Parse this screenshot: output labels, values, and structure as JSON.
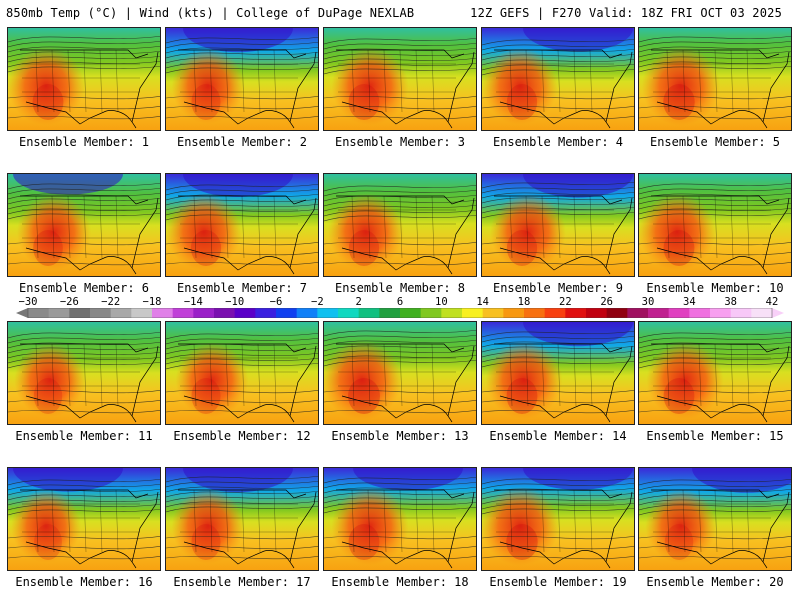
{
  "header": {
    "left_title": "850mb Temp (°C) | Wind (kts) | College of DuPage NEXLAB",
    "right_title": "12Z GEFS | F270 Valid: 18Z FRI OCT 03 2025"
  },
  "colorbar": {
    "labels": [
      "−30",
      "−26",
      "−22",
      "−18",
      "−14",
      "−10",
      "−6",
      "−2",
      "2",
      "6",
      "10",
      "14",
      "18",
      "22",
      "26",
      "30",
      "34",
      "38",
      "42"
    ],
    "colors": [
      "#8a8a8a",
      "#9a9a9a",
      "#707070",
      "#888888",
      "#a8a8a8",
      "#c8c8c8",
      "#e080e8",
      "#c040d8",
      "#9a20c8",
      "#7a10b0",
      "#5a00c8",
      "#3a20e0",
      "#1040f0",
      "#1080f8",
      "#10c0f0",
      "#10d8c0",
      "#10c080",
      "#20a040",
      "#40b020",
      "#80c820",
      "#c0e020",
      "#f8f020",
      "#f8c020",
      "#f89810",
      "#f87010",
      "#f84010",
      "#e01010",
      "#c00010",
      "#900010",
      "#a01060",
      "#c02090",
      "#e040c0",
      "#f070e0",
      "#f8a0f0",
      "#f8c8f8",
      "#f8e0f8"
    ]
  },
  "panels": [
    {
      "label": "Ensemble Member: 1",
      "blue_depth": 0.25,
      "red_west": 0.9
    },
    {
      "label": "Ensemble Member: 2",
      "blue_depth": 0.85,
      "red_west": 0.75
    },
    {
      "label": "Ensemble Member: 3",
      "blue_depth": 0.3,
      "red_west": 0.9
    },
    {
      "label": "Ensemble Member: 4",
      "blue_depth": 0.8,
      "red_west": 0.85
    },
    {
      "label": "Ensemble Member: 5",
      "blue_depth": 0.2,
      "red_west": 0.95
    },
    {
      "label": "Ensemble Member: 6",
      "blue_depth": 0.55,
      "red_west": 0.8
    },
    {
      "label": "Ensemble Member: 7",
      "blue_depth": 0.75,
      "red_west": 0.85
    },
    {
      "label": "Ensemble Member: 8",
      "blue_depth": 0.35,
      "red_west": 0.85
    },
    {
      "label": "Ensemble Member: 9",
      "blue_depth": 0.8,
      "red_west": 0.85
    },
    {
      "label": "Ensemble Member: 10",
      "blue_depth": 0.35,
      "red_west": 0.9
    },
    {
      "label": "Ensemble Member: 11",
      "blue_depth": 0.5,
      "red_west": 0.7
    },
    {
      "label": "Ensemble Member: 12",
      "blue_depth": 0.35,
      "red_west": 0.75
    },
    {
      "label": "Ensemble Member: 13",
      "blue_depth": 0.45,
      "red_west": 1.0
    },
    {
      "label": "Ensemble Member: 14",
      "blue_depth": 0.85,
      "red_west": 0.9
    },
    {
      "label": "Ensemble Member: 15",
      "blue_depth": 0.4,
      "red_west": 0.9
    },
    {
      "label": "Ensemble Member: 16",
      "blue_depth": 0.8,
      "red_west": 0.65
    },
    {
      "label": "Ensemble Member: 17",
      "blue_depth": 0.85,
      "red_west": 0.75
    },
    {
      "label": "Ensemble Member: 18",
      "blue_depth": 0.7,
      "red_west": 0.9
    },
    {
      "label": "Ensemble Member: 19",
      "blue_depth": 0.65,
      "red_west": 0.95
    },
    {
      "label": "Ensemble Member: 20",
      "blue_depth": 0.9,
      "red_west": 0.7
    }
  ]
}
